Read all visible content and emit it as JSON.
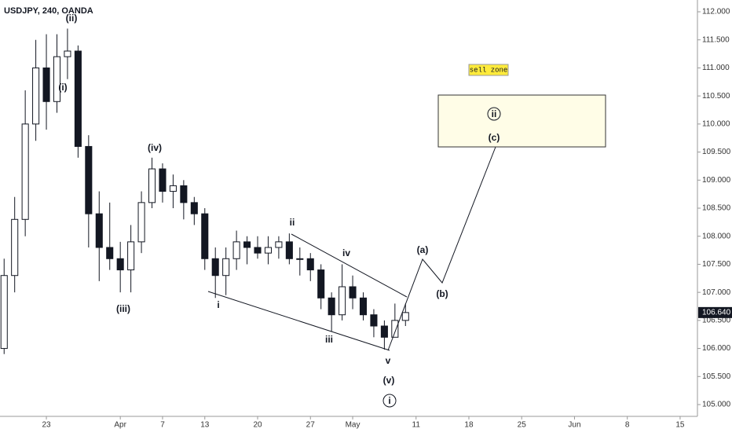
{
  "chart_data": {
    "type": "candlestick",
    "title": "USDJPY, 240, OANDA",
    "x": [
      -4,
      -3,
      -2,
      -1,
      0,
      1,
      2,
      3,
      4,
      5,
      6,
      7,
      8,
      9,
      10,
      11,
      12,
      13,
      14,
      15,
      16,
      17,
      18,
      19,
      20,
      21,
      22,
      23,
      24,
      25,
      26,
      27,
      28,
      29,
      30,
      31,
      32,
      33,
      34
    ],
    "open": [
      106.0,
      107.3,
      108.3,
      110.0,
      111.0,
      110.4,
      111.2,
      111.3,
      109.6,
      108.4,
      107.8,
      107.6,
      107.4,
      107.9,
      108.6,
      109.2,
      108.8,
      108.9,
      108.6,
      108.4,
      107.6,
      107.3,
      107.6,
      107.9,
      107.8,
      107.7,
      107.8,
      107.9,
      107.6,
      107.6,
      107.4,
      106.9,
      106.6,
      107.1,
      106.9,
      106.6,
      106.4,
      106.2,
      106.5
    ],
    "high": [
      107.6,
      108.7,
      110.6,
      111.5,
      111.6,
      111.6,
      111.7,
      111.4,
      109.8,
      108.8,
      108.6,
      107.9,
      108.2,
      108.8,
      109.4,
      109.3,
      109.1,
      109.0,
      108.7,
      108.5,
      107.8,
      107.8,
      108.1,
      108.0,
      108.0,
      108.0,
      108.0,
      108.05,
      107.8,
      107.7,
      107.5,
      107.0,
      107.5,
      107.3,
      107.0,
      106.7,
      106.5,
      106.8,
      106.8
    ],
    "low": [
      105.9,
      107.0,
      108.0,
      109.7,
      109.9,
      110.2,
      110.8,
      109.4,
      107.8,
      107.2,
      107.4,
      107.0,
      107.0,
      107.7,
      108.5,
      108.6,
      108.5,
      108.3,
      108.2,
      107.4,
      106.9,
      106.95,
      107.4,
      107.5,
      107.6,
      107.5,
      107.6,
      107.5,
      107.3,
      107.2,
      106.7,
      106.3,
      106.5,
      106.7,
      106.5,
      106.2,
      105.98,
      106.2,
      106.4
    ],
    "close": [
      107.3,
      108.3,
      110.0,
      111.0,
      110.4,
      111.2,
      111.3,
      109.6,
      108.4,
      107.8,
      107.6,
      107.4,
      107.9,
      108.6,
      109.2,
      108.8,
      108.9,
      108.6,
      108.4,
      107.6,
      107.3,
      107.6,
      107.9,
      107.8,
      107.7,
      107.8,
      107.9,
      107.6,
      107.6,
      107.4,
      106.9,
      106.6,
      107.1,
      106.9,
      106.6,
      106.4,
      106.2,
      106.5,
      106.64
    ],
    "up_color": "#ffffff",
    "down_color": "#131722",
    "xlim": [
      -4.39,
      61.64
    ],
    "xticks": [
      {
        "value": 0,
        "label": "23"
      },
      {
        "value": 7,
        "label": "Apr"
      },
      {
        "value": 11,
        "label": "7"
      },
      {
        "value": 15,
        "label": "13"
      },
      {
        "value": 20,
        "label": "20"
      },
      {
        "value": 25,
        "label": "27"
      },
      {
        "value": 29,
        "label": "May"
      },
      {
        "value": 35,
        "label": "11"
      },
      {
        "value": 40,
        "label": "18"
      },
      {
        "value": 45,
        "label": "25"
      },
      {
        "value": 50,
        "label": "Jun"
      },
      {
        "value": 55,
        "label": "8"
      },
      {
        "value": 60,
        "label": "15"
      }
    ],
    "ylim": [
      104.79,
      112.21
    ],
    "yticks": [
      {
        "value": 105,
        "label": "105.000"
      },
      {
        "value": 105.5,
        "label": "105.500"
      },
      {
        "value": 106,
        "label": "106.000"
      },
      {
        "value": 106.5,
        "label": "106.500"
      },
      {
        "value": 107,
        "label": "107.000"
      },
      {
        "value": 107.5,
        "label": "107.500"
      },
      {
        "value": 108,
        "label": "108.000"
      },
      {
        "value": 108.5,
        "label": "108.500"
      },
      {
        "value": 109,
        "label": "109.000"
      },
      {
        "value": 109.5,
        "label": "109.500"
      },
      {
        "value": 110,
        "label": "110.000"
      },
      {
        "value": 110.5,
        "label": "110.500"
      },
      {
        "value": 111,
        "label": "111.000"
      },
      {
        "value": 111.5,
        "label": "111.500"
      },
      {
        "value": 112,
        "label": "112.000"
      }
    ],
    "last_price": {
      "value": 106.64,
      "label": "106.640"
    },
    "annotations": [
      "(ii)",
      "(i)",
      "(iii)",
      "(iv)",
      "i",
      "ii",
      "iii",
      "iv",
      "v",
      "(v)",
      "i",
      "(a)",
      "(b)",
      "(c)",
      "ii",
      "sell zone"
    ]
  }
}
